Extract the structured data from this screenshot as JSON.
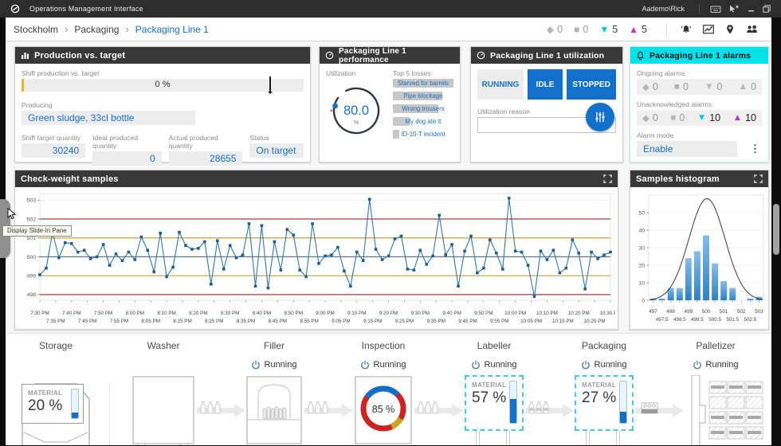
{
  "titlebar": {
    "app_title": "Operations Management Interface",
    "user": "Aademo\\Rick"
  },
  "breadcrumb": {
    "items": [
      "Stockholm",
      "Packaging",
      "Packaging Line 1"
    ],
    "alarm_counts": {
      "diamond": "0",
      "square": "0",
      "down": "5",
      "up": "5"
    },
    "toolbar_icons": [
      "alarm-bell",
      "trend-chart",
      "location-pin",
      "users"
    ]
  },
  "production_panel": {
    "title": "Production vs. target",
    "shift_label": "Shift production vs. target",
    "progress_label": "0 %",
    "marker_pct": 88,
    "producing_label": "Producing",
    "producing_value": "Green sludge, 33cl bottle",
    "fields": [
      {
        "label": "Shift target quantity",
        "value": "30240"
      },
      {
        "label": "Ideal produced quantity",
        "value": "0"
      },
      {
        "label": "Actual produced quantity",
        "value": "28655"
      },
      {
        "label": "Status",
        "value": "On target"
      }
    ]
  },
  "performance_panel": {
    "title": "Packaging Line 1 performance",
    "utilization_label": "Utilization",
    "gauge_value": "80.0",
    "gauge_unit": "%",
    "losses_title": "Top 5 losses",
    "losses": [
      {
        "label": "Starved for barrels",
        "pct": 100
      },
      {
        "label": "Pipe blockage",
        "pct": 82
      },
      {
        "label": "Wrong trousers",
        "pct": 75
      },
      {
        "label": "My dog ate it",
        "pct": 27
      },
      {
        "label": "ID-10-T incident",
        "pct": 10
      }
    ]
  },
  "utilization_panel": {
    "title": "Packaging Line 1 utilization",
    "buttons": [
      "RUNNING",
      "IDLE",
      "STOPPED"
    ],
    "reason_label": "Utilization reason"
  },
  "alarms_panel": {
    "title": "Packaging Line 1 alarms",
    "ongoing_label": "Ongoing alarms",
    "ongoing": {
      "diamond": "0",
      "square": "0",
      "down": "0",
      "up": "0"
    },
    "unack_label": "Unacknowledged alarms",
    "unacknowledged": {
      "diamond": "0",
      "square": "0",
      "down": "10",
      "up": "10"
    },
    "alarm_mode_label": "Alarm mode",
    "alarm_mode_value": "Enable"
  },
  "checkweight_panel": {
    "title": "Check-weight samples",
    "chart_data": {
      "type": "line",
      "title": "Check-weight samples",
      "ylim": [
        497.7,
        503.35
      ],
      "yticks": [
        498,
        499,
        500,
        501,
        502,
        503
      ],
      "reference_lines": [
        {
          "value": 502,
          "color": "#a93a3a"
        },
        {
          "value": 501,
          "color": "#cf9f3e"
        },
        {
          "value": 500,
          "color": "#5a6b7a"
        },
        {
          "value": 499,
          "color": "#cf9f3e"
        },
        {
          "value": 498,
          "color": "#a93a3a"
        }
      ],
      "x_tick_labels": [
        "7:30 PM",
        "7:35 PM",
        "7:40 PM",
        "7:45 PM",
        "7:50 PM",
        "7:55 PM",
        "8:00 PM",
        "8:05 PM",
        "8:10 PM",
        "8:15 PM",
        "8:20 PM",
        "8:25 PM",
        "8:30 PM",
        "8:35 PM",
        "8:40 PM",
        "8:45 PM",
        "8:50 PM",
        "8:55 PM",
        "9:00 PM",
        "9:05 PM",
        "9:10 PM",
        "9:15 PM",
        "9:20 PM",
        "9:25 PM",
        "9:30 PM",
        "9:35 PM",
        "9:40 PM",
        "9:45 PM",
        "9:50 PM",
        "9:55 PM",
        "10:00 PM",
        "10:05 PM",
        "10:10 PM",
        "10:15 PM",
        "10:20 PM",
        "10:25 PM",
        "10:30 PM"
      ],
      "series_color": "#2e76ac",
      "marker_color": "#1d5e92",
      "values": [
        499.05,
        499.4,
        501.3,
        499.95,
        500.75,
        500.7,
        500.25,
        500.35,
        499.9,
        500.0,
        500.65,
        499.55,
        500.15,
        499.8,
        500.25,
        499.85,
        501.05,
        500.35,
        499.2,
        501.25,
        498.95,
        499.45,
        501.3,
        500.6,
        500.4,
        500.45,
        500.8,
        498.55,
        500.85,
        499.35,
        500.6,
        499.95,
        500.1,
        501.75,
        498.45,
        501.65,
        498.35,
        500.8,
        499.3,
        501.45,
        501.15,
        499.3,
        498.95,
        501.75,
        499.65,
        500.05,
        500.1,
        500.5,
        499.25,
        498.45,
        500.25,
        499.8,
        503.05,
        500.4,
        499.85,
        500.05,
        500.95,
        501.1,
        499.35,
        499.3,
        500.35,
        499.6,
        500.05,
        502.2,
        500.1,
        500.65,
        498.45,
        500.3,
        501.1,
        499.15,
        499.4,
        500.9,
        500.2,
        499.35,
        503.1,
        500.3,
        500.25,
        499.55,
        497.9,
        500.3,
        499.85,
        500.35,
        499.15,
        499.4,
        500.9,
        500.2,
        498.3,
        500.25,
        499.9,
        500.1,
        500.25
      ]
    }
  },
  "histogram_panel": {
    "title": "Samples histogram",
    "chart_data": {
      "type": "bar",
      "categories": [
        "497",
        "497.5",
        "498",
        "498.5",
        "499",
        "499.5",
        "500",
        "500.5",
        "501",
        "501.5",
        "502",
        "502.5",
        "503"
      ],
      "values": [
        1,
        1,
        7,
        7,
        24,
        28,
        37,
        21,
        11,
        7,
        0,
        1,
        2
      ],
      "yticks": [
        0,
        10,
        20,
        30,
        40,
        50
      ],
      "ylim": [
        0,
        60
      ],
      "bell_curve": {
        "amp": 58,
        "mean": 500.05,
        "sd": 1.02
      },
      "bar_color_top": "#87bde9",
      "bar_color_bottom": "#2f80c2",
      "curve_color": "#3a3a3a"
    }
  },
  "tooltip": {
    "text": "Display Slide-In Pane"
  },
  "process_line": {
    "machines": [
      {
        "name": "Storage",
        "material_label": "MATERIAL",
        "material_value": "20 %",
        "level_pct": 20
      },
      {
        "name": "Washer"
      },
      {
        "name": "Filler",
        "status": "Running"
      },
      {
        "name": "Inspection",
        "status": "Running",
        "value": "85 %"
      },
      {
        "name": "Labeller",
        "status": "Running",
        "material_label": "MATERIAL",
        "material_value": "57 %",
        "level_pct": 57
      },
      {
        "name": "Packaging",
        "status": "Running",
        "material_label": "MATERIAL",
        "material_value": "27 %",
        "level_pct": 27
      },
      {
        "name": "Palletizer",
        "status": "Running"
      }
    ]
  }
}
